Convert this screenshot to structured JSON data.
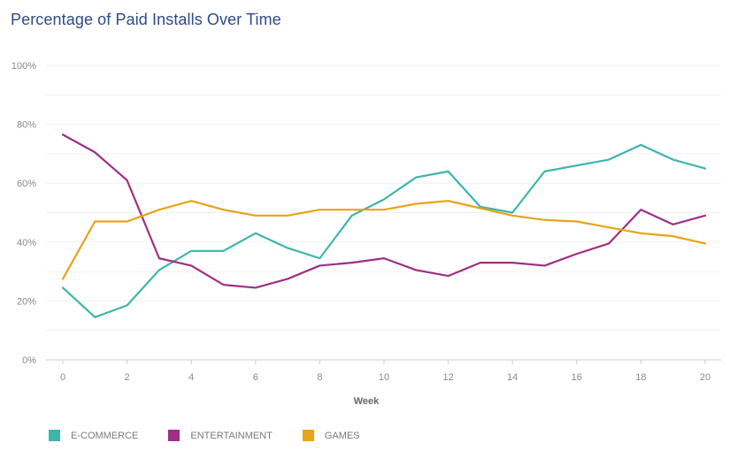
{
  "chart_data": {
    "type": "line",
    "title": "Percentage of Paid Installs Over Time",
    "xlabel": "Week",
    "ylabel": "",
    "x": [
      0,
      1,
      2,
      3,
      4,
      5,
      6,
      7,
      8,
      9,
      10,
      11,
      12,
      13,
      14,
      15,
      16,
      17,
      18,
      19,
      20
    ],
    "x_ticks": [
      "0",
      "2",
      "4",
      "6",
      "8",
      "10",
      "12",
      "14",
      "16",
      "18",
      "20"
    ],
    "y_ticks": [
      "0%",
      "20%",
      "40%",
      "60%",
      "80%",
      "100%"
    ],
    "ylim": [
      0,
      100
    ],
    "xlim": [
      0,
      20
    ],
    "grid": true,
    "legend_position": "bottom-left",
    "series": [
      {
        "name": "E-COMMERCE",
        "color": "#3db5ad",
        "values": [
          24.5,
          14.5,
          18.5,
          30.5,
          37,
          37,
          43,
          38,
          34.5,
          49,
          54.5,
          62,
          64,
          52,
          50,
          64,
          66,
          68,
          73,
          68,
          65
        ]
      },
      {
        "name": "ENTERTAINMENT",
        "color": "#9e2f85",
        "values": [
          76.5,
          70.5,
          61,
          34.5,
          32,
          25.5,
          24.5,
          27.5,
          32,
          33,
          34.5,
          30.5,
          28.5,
          33,
          33,
          32,
          36,
          39.5,
          51,
          46,
          49
        ]
      },
      {
        "name": "GAMES",
        "color": "#e8a317",
        "values": [
          27.5,
          47,
          47,
          51,
          54,
          51,
          49,
          49,
          51,
          51,
          51,
          53,
          54,
          51.5,
          49,
          47.5,
          47,
          45,
          43,
          42,
          39.5
        ]
      }
    ]
  }
}
